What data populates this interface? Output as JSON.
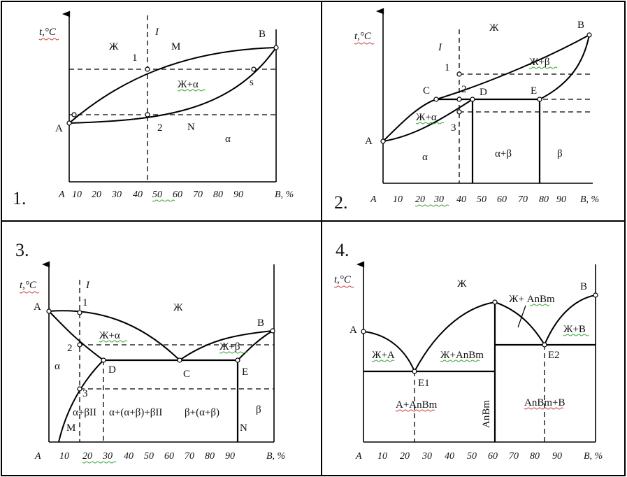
{
  "panels": [
    {
      "number": "1.",
      "axis_title": "t,°C",
      "x_tick_labels": [
        "A",
        "10",
        "20",
        "30",
        "40",
        "50",
        "60",
        "70",
        "80",
        "90",
        "B, %"
      ],
      "labels": {
        "I": "I",
        "zh": "Ж",
        "M": "M",
        "B": "B",
        "p1": "1",
        "zh_alpha": "Ж+α",
        "s": "s",
        "A": "A",
        "p2": "2",
        "N": "N",
        "alpha": "α"
      }
    },
    {
      "number": "2.",
      "axis_title": "t,°C",
      "x_tick_labels": [
        "A",
        "10",
        "20",
        "30",
        "40",
        "50",
        "60",
        "70",
        "80",
        "90",
        "B, %"
      ],
      "labels": {
        "zh": "Ж",
        "B": "B",
        "I": "I",
        "p1": "1",
        "zh_beta": "Ж+β",
        "C": "C",
        "p2": "2",
        "D": "D",
        "E": "E",
        "zh_alpha": "Ж+α",
        "p3": "3",
        "A": "A",
        "alpha": "α",
        "alpha_beta": "α+β",
        "beta": "β"
      }
    },
    {
      "number": "3.",
      "axis_title": "t,°C",
      "x_tick_labels": [
        "A",
        "10",
        "20",
        "30",
        "40",
        "50",
        "60",
        "70",
        "80",
        "90",
        "B, %"
      ],
      "labels": {
        "I": "I",
        "A": "A",
        "p1": "1",
        "zh": "Ж",
        "B": "B",
        "zh_alpha": "Ж+α",
        "zh_beta": "Ж+β",
        "p2": "2",
        "alpha": "α",
        "D": "D",
        "C": "C",
        "E": "E",
        "p3": "3",
        "r1": "α+βII",
        "r2": "α+(α+β)+βII",
        "r3": "β+(α+β)",
        "beta": "β",
        "M": "M",
        "N": "N"
      }
    },
    {
      "number": "4.",
      "axis_title": "t,°C",
      "x_tick_labels": [
        "A",
        "10",
        "20",
        "30",
        "40",
        "50",
        "60",
        "70",
        "80",
        "90",
        "B, %"
      ],
      "labels": {
        "zh": "Ж",
        "zh_anbm": "Ж+ AnBm",
        "B": "B",
        "A": "A",
        "zh_A": "Ж+A",
        "zh_anbm2": "Ж+AnBm",
        "zh_B": "Ж+B",
        "E2": "E2",
        "E1": "E1",
        "A_anbm": "A+AnBm",
        "anbm_B": "AnBm+B",
        "compound": "AnBm"
      }
    }
  ]
}
